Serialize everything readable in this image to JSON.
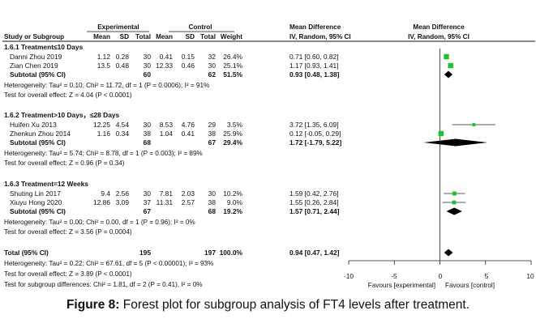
{
  "chart_data": {
    "type": "forest",
    "headers": {
      "group_experimental": "Experimental",
      "group_control": "Control",
      "group_mean_diff_left": "Mean Difference",
      "group_mean_diff_right": "Mean Difference",
      "col_study": "Study or Subgroup",
      "col_e_mean": "Mean",
      "col_e_sd": "SD",
      "col_e_total": "Total",
      "col_c_mean": "Mean",
      "col_c_sd": "SD",
      "col_c_total": "Total",
      "col_weight": "Weight",
      "col_ci_left": "IV, Random, 95% CI",
      "col_ci_right": "IV, Random, 95% CI"
    },
    "subgroups": [
      {
        "title": "1.6.1 Treatment≤10 Days",
        "studies": [
          {
            "name": "Danni Zhou 2019",
            "e_mean": "1.12",
            "e_sd": "0.28",
            "e_total": "30",
            "c_mean": "0.41",
            "c_sd": "0.15",
            "c_total": "32",
            "weight": "26.4%",
            "ci": "0.71 [0.60, 0.82]",
            "md": 0.71,
            "lo": 0.6,
            "hi": 0.82
          },
          {
            "name": "Zian Chen 2019",
            "e_mean": "13.5",
            "e_sd": "0.48",
            "e_total": "30",
            "c_mean": "12.33",
            "c_sd": "0.46",
            "c_total": "30",
            "weight": "25.1%",
            "ci": "1.17 [0.93, 1.41]",
            "md": 1.17,
            "lo": 0.93,
            "hi": 1.41
          }
        ],
        "subtotal": {
          "label": "Subtotal (95% CI)",
          "e_total": "60",
          "c_total": "62",
          "weight": "51.5%",
          "ci": "0.93 [0.48, 1.38]",
          "md": 0.93,
          "lo": 0.48,
          "hi": 1.38
        },
        "heterogeneity": "Heterogeneity: Tau² = 0.10; Chi² = 11.72, df = 1 (P = 0.0006); I² = 91%",
        "overall": "Test for overall effect: Z = 4.04 (P < 0.0001)"
      },
      {
        "title": "1.6.2 Treatment>10 Days，≤28 Days",
        "studies": [
          {
            "name": "Huifen Xu 2013",
            "e_mean": "12.25",
            "e_sd": "4.54",
            "e_total": "30",
            "c_mean": "8.53",
            "c_sd": "4.76",
            "c_total": "29",
            "weight": "3.5%",
            "ci": "3.72 [1.35, 6.09]",
            "md": 3.72,
            "lo": 1.35,
            "hi": 6.09
          },
          {
            "name": "Zhenkun Zhou 2014",
            "e_mean": "1.16",
            "e_sd": "0.34",
            "e_total": "38",
            "c_mean": "1.04",
            "c_sd": "0.41",
            "c_total": "38",
            "weight": "25.9%",
            "ci": "0.12 [-0.05, 0.29]",
            "md": 0.12,
            "lo": -0.05,
            "hi": 0.29
          }
        ],
        "subtotal": {
          "label": "Subtotal (95% CI)",
          "e_total": "68",
          "c_total": "67",
          "weight": "29.4%",
          "ci": "1.72 [-1.79, 5.22]",
          "md": 1.72,
          "lo": -1.79,
          "hi": 5.22
        },
        "heterogeneity": "Heterogeneity: Tau² = 5.74; Chi² = 8.78, df = 1 (P = 0.003); I² = 89%",
        "overall": "Test for overall effect: Z = 0.96 (P = 0.34)"
      },
      {
        "title": "1.6.3 Treatment=12 Weeks",
        "studies": [
          {
            "name": "Shuting Lin 2017",
            "e_mean": "9.4",
            "e_sd": "2.56",
            "e_total": "30",
            "c_mean": "7.81",
            "c_sd": "2.03",
            "c_total": "30",
            "weight": "10.2%",
            "ci": "1.59 [0.42, 2.76]",
            "md": 1.59,
            "lo": 0.42,
            "hi": 2.76
          },
          {
            "name": "Xiuyu Hong 2020",
            "e_mean": "12.86",
            "e_sd": "3.09",
            "e_total": "37",
            "c_mean": "11.31",
            "c_sd": "2.57",
            "c_total": "38",
            "weight": "9.0%",
            "ci": "1.55 [0.26, 2.84]",
            "md": 1.55,
            "lo": 0.26,
            "hi": 2.84
          }
        ],
        "subtotal": {
          "label": "Subtotal (95% CI)",
          "e_total": "67",
          "c_total": "68",
          "weight": "19.2%",
          "ci": "1.57 [0.71, 2.44]",
          "md": 1.57,
          "lo": 0.71,
          "hi": 2.44
        },
        "heterogeneity": "Heterogeneity: Tau² = 0.00; Chi² = 0.00, df = 1 (P = 0.96); I² = 0%",
        "overall": "Test for overall effect: Z = 3.56 (P = 0.0004)"
      }
    ],
    "total": {
      "label": "Total (95% CI)",
      "e_total": "195",
      "c_total": "197",
      "weight": "100.0%",
      "ci": "0.94 [0.47, 1.42]",
      "md": 0.94,
      "lo": 0.47,
      "hi": 1.42
    },
    "footer_lines": [
      "Heterogeneity: Tau² = 0.22; Chi² = 67.61, df = 5 (P < 0.00001); I² = 93%",
      "Test for overall effect: Z = 3.89 (P < 0.0001)",
      "Test for subgroup differences: Chi² = 1.81, df = 2 (P = 0.41), I² = 0%"
    ],
    "axis": {
      "xlim": [
        -10,
        10
      ],
      "ticks": [
        -10,
        -5,
        0,
        5,
        10
      ],
      "tick_labels": [
        "-10",
        "-5",
        "0",
        "5",
        "10"
      ]
    },
    "favours_left": "Favours [experimental]",
    "favours_right": "Favours [control]",
    "colors": {
      "square": "#22c02a",
      "diamond": "#000000",
      "line": "#222222"
    }
  },
  "caption": {
    "label": "Figure 8:",
    "text": " Forest plot for subgroup analysis of FT4 levels after treatment."
  }
}
